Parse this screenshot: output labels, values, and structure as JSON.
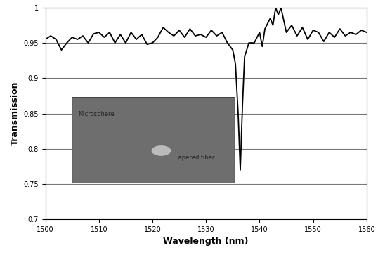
{
  "chart_data": {
    "type": "line",
    "x_label": "Wavelength (nm)",
    "y_label": "Transmission",
    "annotations": [
      "Microsphere",
      "Tapered fiber"
    ],
    "x": [
      1500,
      1501,
      1502,
      1503,
      1504,
      1505,
      1506,
      1507,
      1508,
      1509,
      1510,
      1511,
      1512,
      1513,
      1514,
      1515,
      1516,
      1517,
      1518,
      1519,
      1520,
      1521,
      1522,
      1523,
      1524,
      1525,
      1526,
      1527,
      1528,
      1529,
      1530,
      1531,
      1532,
      1533,
      1534,
      1535,
      1535.5,
      1536,
      1536.4,
      1536.8,
      1537.2,
      1538,
      1539,
      1540,
      1540.5,
      1541,
      1542,
      1542.5,
      1543,
      1543.5,
      1544,
      1545,
      1546,
      1547,
      1548,
      1549,
      1550,
      1551,
      1552,
      1553,
      1554,
      1555,
      1556,
      1557,
      1558,
      1559,
      1560
    ],
    "values": [
      0.955,
      0.96,
      0.955,
      0.94,
      0.95,
      0.958,
      0.955,
      0.96,
      0.95,
      0.963,
      0.965,
      0.958,
      0.965,
      0.95,
      0.962,
      0.95,
      0.965,
      0.955,
      0.962,
      0.948,
      0.95,
      0.958,
      0.972,
      0.965,
      0.96,
      0.968,
      0.958,
      0.97,
      0.96,
      0.962,
      0.958,
      0.968,
      0.96,
      0.965,
      0.95,
      0.94,
      0.92,
      0.85,
      0.77,
      0.86,
      0.93,
      0.95,
      0.95,
      0.965,
      0.945,
      0.97,
      0.985,
      0.975,
      1.0,
      0.99,
      1.0,
      0.965,
      0.975,
      0.96,
      0.972,
      0.955,
      0.968,
      0.965,
      0.952,
      0.965,
      0.958,
      0.97,
      0.96,
      0.965,
      0.962,
      0.968,
      0.965
    ],
    "color": "#000000",
    "xlim": [
      1500,
      1560
    ],
    "xticks": [
      1500,
      1510,
      1520,
      1530,
      1540,
      1550,
      1560
    ],
    "ylim": [
      0.7,
      1
    ],
    "yticks": [
      0.7,
      0.75,
      0.8,
      0.85,
      0.9,
      0.95,
      1
    ],
    "grid": true
  }
}
